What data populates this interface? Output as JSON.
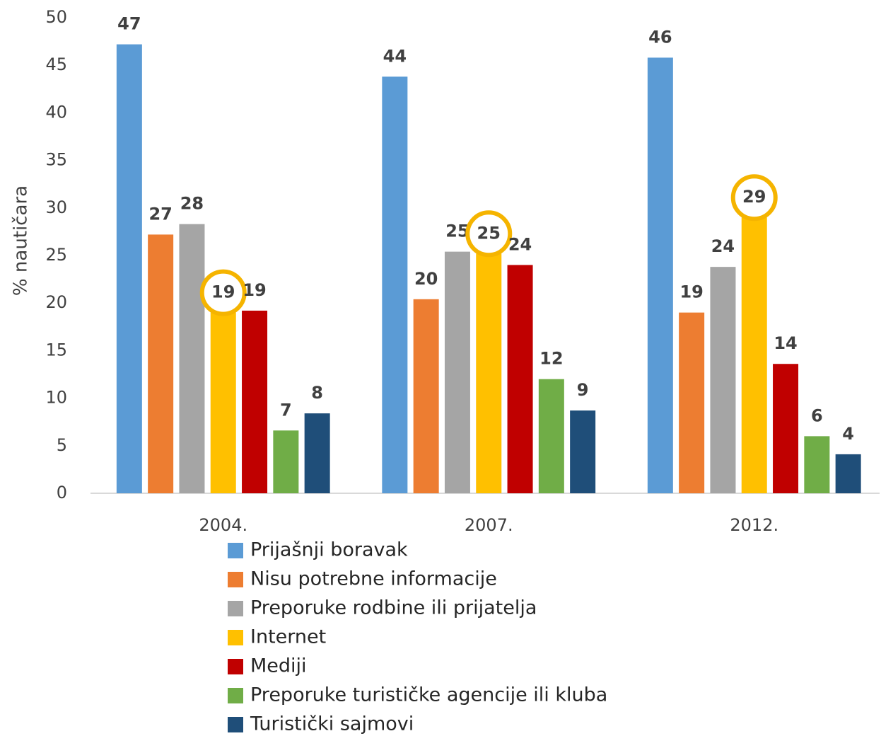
{
  "chart_data": {
    "type": "bar",
    "y_label": "% nautičara",
    "categories": [
      "2004.",
      "2007.",
      "2012."
    ],
    "series": [
      {
        "name": "Prijašnji boravak",
        "color": "#5b9bd5",
        "values": [
          47.2,
          43.8,
          45.8
        ],
        "value_labels": [
          "47",
          "44",
          "46"
        ]
      },
      {
        "name": "Nisu potrebne informacije",
        "color": "#ed7d31",
        "values": [
          27.2,
          20.4,
          19.0
        ],
        "value_labels": [
          "27",
          "20",
          "19"
        ]
      },
      {
        "name": "Preporuke rodbine ili prijatelja",
        "color": "#a5a5a5",
        "values": [
          28.3,
          25.4,
          23.8
        ],
        "value_labels": [
          "28",
          "25",
          "24"
        ]
      },
      {
        "name": "Internet",
        "color": "#ffc000",
        "values": [
          19.0,
          25.2,
          29.0
        ],
        "value_labels": [
          "19",
          "25",
          "29"
        ]
      },
      {
        "name": "Mediji",
        "color": "#c00000",
        "values": [
          19.2,
          24.0,
          13.6
        ],
        "value_labels": [
          "19",
          "24",
          "14"
        ]
      },
      {
        "name": "Preporuke turističke agencije ili kluba",
        "color": "#70ad47",
        "values": [
          6.6,
          12.0,
          6.0
        ],
        "value_labels": [
          "7",
          "12",
          "6"
        ]
      },
      {
        "name": "Turistički sajmovi",
        "color": "#1f4e79",
        "values": [
          8.4,
          8.7,
          4.1
        ],
        "value_labels": [
          "8",
          "9",
          "4"
        ]
      }
    ],
    "highlight_series": "Internet",
    "highlight_color": "#f5b400",
    "ylim": [
      0,
      50
    ],
    "yticks": [
      0,
      5,
      10,
      15,
      20,
      25,
      30,
      35,
      40,
      45,
      50
    ],
    "grid": false,
    "legend": "bottom"
  }
}
